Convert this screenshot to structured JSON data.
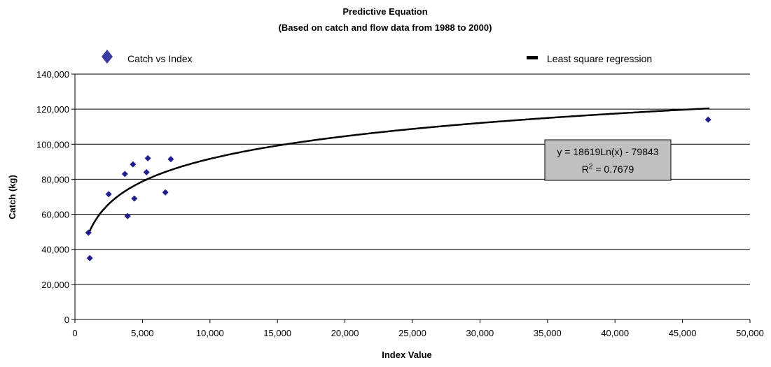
{
  "chart_data": {
    "type": "scatter",
    "title": "Predictive Equation",
    "subtitle": "(Based on catch and flow data from 1988 to 2000)",
    "xlabel": "Index Value",
    "ylabel": "Catch (kg)",
    "xlim": [
      0,
      50000
    ],
    "ylim": [
      0,
      140000
    ],
    "x_ticks": [
      "0",
      "5,000",
      "10,000",
      "15,000",
      "20,000",
      "25,000",
      "30,000",
      "35,000",
      "40,000",
      "45,000",
      "50,000"
    ],
    "y_ticks": [
      "0",
      "20,000",
      "40,000",
      "60,000",
      "80,000",
      "100,000",
      "120,000",
      "140,000"
    ],
    "grid": "horizontal",
    "legend_position": "top",
    "series": [
      {
        "name": "Catch vs Index",
        "kind": "scatter",
        "marker": "diamond",
        "color": "#1f1f8f",
        "points": [
          {
            "x": 1000,
            "y": 49500
          },
          {
            "x": 1100,
            "y": 35000
          },
          {
            "x": 2500,
            "y": 71500
          },
          {
            "x": 3700,
            "y": 83000
          },
          {
            "x": 3900,
            "y": 59000
          },
          {
            "x": 4300,
            "y": 88500
          },
          {
            "x": 4400,
            "y": 69000
          },
          {
            "x": 5300,
            "y": 84000
          },
          {
            "x": 5400,
            "y": 92000
          },
          {
            "x": 6700,
            "y": 72500
          },
          {
            "x": 7100,
            "y": 91500
          },
          {
            "x": 46900,
            "y": 114000
          }
        ]
      },
      {
        "name": "Least square regression",
        "kind": "trendline",
        "color": "#000000",
        "model": "logarithmic",
        "a": 18619,
        "b": -79843,
        "x_range": [
          1000,
          47000
        ]
      }
    ],
    "annotation": {
      "equation": "y = 18619Ln(x) - 79843",
      "r_squared_prefix": "R",
      "r_squared_sup": "2",
      "r_squared_suffix": " = 0.7679",
      "box_color": "#c0c0c0"
    }
  }
}
